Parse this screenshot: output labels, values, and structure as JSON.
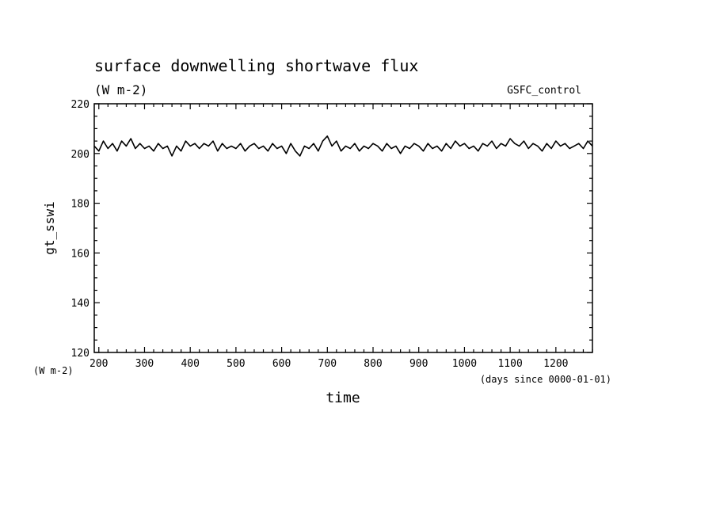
{
  "chart_data": {
    "type": "line",
    "title": "surface downwelling shortwave flux",
    "subtitle": "(W m-2)",
    "run_label": "GSFC_control",
    "ylabel": "gt_sswi",
    "xlabel": "time",
    "y_unit": "(W m-2)",
    "x_unit": "(days since 0000-01-01)",
    "xlim": [
      190,
      1280
    ],
    "ylim": [
      120,
      220
    ],
    "x_ticks": [
      200,
      300,
      400,
      500,
      600,
      700,
      800,
      900,
      1000,
      1100,
      1200
    ],
    "y_ticks": [
      120,
      140,
      160,
      180,
      200,
      220
    ],
    "grid": false,
    "series": [
      {
        "x": [
          190,
          200,
          210,
          220,
          230,
          240,
          250,
          260,
          270,
          280,
          290,
          300,
          310,
          320,
          330,
          340,
          350,
          360,
          370,
          380,
          390,
          400,
          410,
          420,
          430,
          440,
          450,
          460,
          470,
          480,
          490,
          500,
          510,
          520,
          530,
          540,
          550,
          560,
          570,
          580,
          590,
          600,
          610,
          620,
          630,
          640,
          650,
          660,
          670,
          680,
          690,
          700,
          710,
          720,
          730,
          740,
          750,
          760,
          770,
          780,
          790,
          800,
          810,
          820,
          830,
          840,
          850,
          860,
          870,
          880,
          890,
          900,
          910,
          920,
          930,
          940,
          950,
          960,
          970,
          980,
          990,
          1000,
          1010,
          1020,
          1030,
          1040,
          1050,
          1060,
          1070,
          1080,
          1090,
          1100,
          1110,
          1120,
          1130,
          1140,
          1150,
          1160,
          1170,
          1180,
          1190,
          1200,
          1210,
          1220,
          1230,
          1240,
          1250,
          1260,
          1270,
          1280
        ],
        "values": [
          203,
          201,
          205,
          202,
          204,
          201,
          205,
          203,
          206,
          202,
          204,
          202,
          203,
          201,
          204,
          202,
          203,
          199,
          203,
          201,
          205,
          203,
          204,
          202,
          204,
          203,
          205,
          201,
          204,
          202,
          203,
          202,
          204,
          201,
          203,
          204,
          202,
          203,
          201,
          204,
          202,
          203,
          200,
          204,
          201,
          199,
          203,
          202,
          204,
          201,
          205,
          207,
          203,
          205,
          201,
          203,
          202,
          204,
          201,
          203,
          202,
          204,
          203,
          201,
          204,
          202,
          203,
          200,
          203,
          202,
          204,
          203,
          201,
          204,
          202,
          203,
          201,
          204,
          202,
          205,
          203,
          204,
          202,
          203,
          201,
          204,
          203,
          205,
          202,
          204,
          203,
          206,
          204,
          203,
          205,
          202,
          204,
          203,
          201,
          204,
          202,
          205,
          203,
          204,
          202,
          203,
          204,
          202,
          205,
          203
        ]
      }
    ]
  }
}
